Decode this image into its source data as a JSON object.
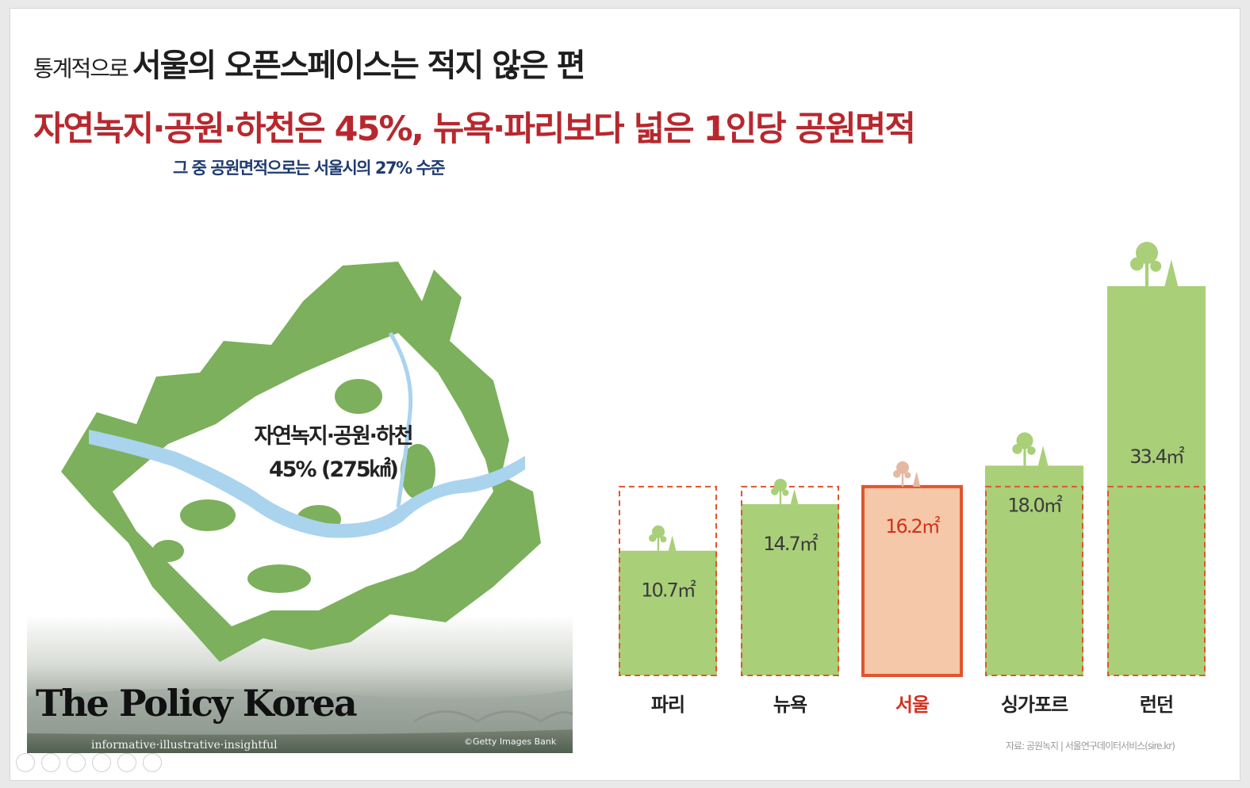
{
  "header": {
    "prefix": "통계적으로",
    "title": "서울의 오픈스페이스는 적지 않은 편",
    "subtitle": "자연녹지·공원·하천은 45%, 뉴욕·파리보다 넓은 1인당 공원면적",
    "note": "그 중 공원면적으로는 서울시의 27% 수준"
  },
  "map": {
    "label_line1": "자연녹지·공원·하천",
    "label_line2": "45% (275㎢)",
    "credit": "©Getty Images Bank"
  },
  "brand": {
    "name": "The Policy Korea",
    "tagline": "informative·illustrative·insightful"
  },
  "source": "자료: 공원녹지 | 서울연구데이터서비스(sire.kr)",
  "colors": {
    "title": "#1e1e1e",
    "subtitle": "#b7282e",
    "note": "#1f3b70",
    "bar_green": "#a9cf78",
    "seoul_fill": "#f4c8a8",
    "seoul_stroke": "#e0552f",
    "seoul_label": "#d0321f",
    "map_green": "#7cb05c",
    "river": "#aad3ee"
  },
  "chart_data": {
    "type": "bar",
    "categories": [
      "파리",
      "뉴욕",
      "서울",
      "싱가포르",
      "런던"
    ],
    "values": [
      10.7,
      14.7,
      16.2,
      18.0,
      33.4
    ],
    "value_labels": [
      "10.7㎡",
      "14.7㎡",
      "16.2㎡",
      "18.0㎡",
      "33.4㎡"
    ],
    "reference_value": 16.2,
    "highlight": "서울",
    "unit": "㎡"
  }
}
